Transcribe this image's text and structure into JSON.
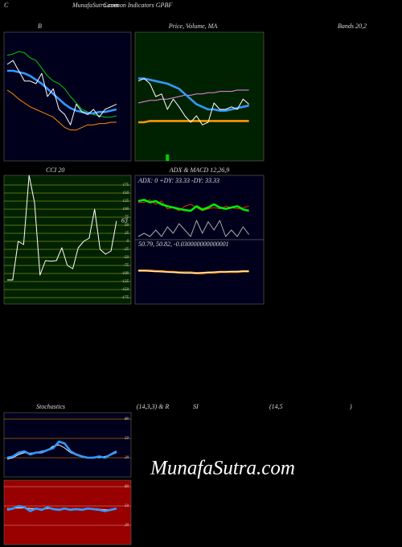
{
  "header": {
    "letter": "C",
    "site": "MunafaSutra.com",
    "title": "Common Indicators GPBF"
  },
  "watermark": "MunafaSutra.com",
  "chart_data": [
    {
      "type": "line",
      "title": "B",
      "subtitle": "Bands 20,2",
      "background": "#00001c",
      "ylim": [
        0,
        100
      ],
      "series": [
        {
          "color": "#00cc00",
          "values": [
            82,
            83,
            85,
            84,
            80,
            78,
            72,
            66,
            62,
            60,
            56,
            50,
            45,
            40,
            38,
            36,
            35,
            34,
            34,
            35
          ]
        },
        {
          "color": "#ff8800",
          "values": [
            55,
            52,
            48,
            45,
            42,
            40,
            38,
            36,
            34,
            30,
            26,
            24,
            24,
            26,
            28,
            28,
            29,
            29,
            30,
            30
          ]
        },
        {
          "color": "#3399ff",
          "values": [
            70,
            70,
            69,
            68,
            66,
            63,
            60,
            56,
            52,
            48,
            44,
            41,
            39,
            38,
            37,
            37,
            38,
            38,
            39,
            40
          ]
        },
        {
          "color": "#ffffff",
          "values": [
            75,
            78,
            70,
            62,
            62,
            60,
            68,
            50,
            56,
            40,
            36,
            28,
            44,
            38,
            36,
            40,
            34,
            40,
            42,
            44
          ]
        }
      ]
    },
    {
      "type": "line",
      "title": "Price,  Volume, MA",
      "background": "#002200",
      "ylim": [
        0,
        100
      ],
      "series": [
        {
          "color": "#ff9900",
          "values": [
            30,
            30,
            31,
            31,
            31,
            31,
            31,
            31,
            31,
            31,
            31,
            31,
            31,
            31,
            31,
            31,
            31,
            31,
            31,
            31
          ]
        },
        {
          "color": "#ee88ee",
          "values": [
            45,
            46,
            47,
            47,
            48,
            48,
            49,
            50,
            51,
            51,
            52,
            52,
            53,
            53,
            54,
            54,
            54,
            55,
            55,
            55
          ]
        },
        {
          "color": "#3399ff",
          "values": [
            64,
            64,
            63,
            62,
            61,
            60,
            58,
            56,
            52,
            48,
            44,
            42,
            40,
            40,
            39,
            39,
            40,
            41,
            42,
            43
          ]
        },
        {
          "color": "#ffffff",
          "values": [
            62,
            64,
            60,
            50,
            52,
            40,
            48,
            42,
            35,
            30,
            35,
            28,
            30,
            45,
            40,
            40,
            42,
            40,
            48,
            44
          ]
        }
      ],
      "volume": {
        "color": "#00cc00",
        "values": [
          0,
          0,
          0,
          0,
          0,
          5,
          0,
          0,
          0,
          0,
          0,
          0,
          0,
          0,
          0,
          0,
          0,
          0,
          0,
          0
        ]
      }
    },
    {
      "type": "line",
      "title": "CCI 20",
      "background": "#002200",
      "ylim": [
        -195,
        205
      ],
      "grid": true,
      "grid_color": "#7a8a1a",
      "yticks": [
        175,
        150,
        125,
        100,
        75,
        50,
        25,
        0,
        -25,
        -50,
        -75,
        -100,
        -125,
        -150,
        -175
      ],
      "last_value_label": true,
      "series": [
        {
          "color": "#ffffff",
          "values": [
            -120,
            -120,
            0,
            -10,
            205,
            120,
            -105,
            -60,
            -62,
            -60,
            -20,
            -75,
            -85,
            -20,
            0,
            10,
            100,
            -25,
            -40,
            -30,
            63
          ]
        }
      ]
    },
    {
      "type": "line",
      "title": "ADX  & MACD 12,26,9",
      "annotation": "ADX: 0  +DY: 33.33 -DY: 33.33",
      "background": "#00001c",
      "ylim": [
        0,
        100
      ],
      "series": [
        {
          "color": "#aaaaaa",
          "values": [
            5,
            10,
            5,
            15,
            5,
            20,
            10,
            25,
            15,
            5,
            30,
            10,
            28,
            15,
            30,
            5,
            15,
            5,
            20,
            8
          ]
        },
        {
          "color": "#dd3300",
          "values": [
            58,
            58,
            62,
            55,
            60,
            48,
            50,
            45,
            52,
            55,
            50,
            45,
            48,
            50,
            48,
            52,
            50,
            48,
            50,
            52
          ]
        },
        {
          "color": "#00ee00",
          "values": [
            60,
            62,
            58,
            60,
            55,
            52,
            50,
            48,
            46,
            45,
            52,
            47,
            50,
            55,
            50,
            48,
            50,
            52,
            47,
            45
          ]
        }
      ]
    },
    {
      "type": "line",
      "annotation": "50.79,  50.82,  -0.030000000000001",
      "background": "#00001c",
      "ylim": [
        0,
        100
      ],
      "series": [
        {
          "color": "#ff9900",
          "values": [
            52,
            52,
            52,
            51,
            51,
            50,
            50,
            49,
            49,
            49,
            48,
            48,
            49,
            49,
            50,
            50,
            50,
            50,
            51,
            51
          ]
        },
        {
          "color": "#ffffff",
          "values": [
            52,
            52,
            51,
            51,
            50,
            50,
            49,
            49,
            48,
            48,
            48,
            49,
            49,
            50,
            50,
            50,
            51,
            51,
            51,
            51
          ]
        }
      ]
    },
    {
      "type": "line",
      "title": "Stochastics",
      "subtitle": "(14,3,3) & R",
      "background": "#00001c",
      "ylim": [
        -10,
        90
      ],
      "grid": true,
      "grid_color": "#aa6600",
      "yticks": [
        80,
        50,
        20
      ],
      "series": [
        {
          "color": "#ffffff",
          "values": [
            18,
            20,
            25,
            28,
            27,
            28,
            30,
            32,
            38,
            40,
            35,
            28,
            24,
            21,
            20,
            21,
            20,
            22,
            24,
            28
          ]
        },
        {
          "color": "#3399ff",
          "values": [
            20,
            22,
            28,
            30,
            25,
            28,
            28,
            32,
            35,
            45,
            42,
            30,
            25,
            22,
            20,
            20,
            22,
            20,
            25,
            30
          ]
        }
      ]
    },
    {
      "type": "line",
      "title": "SI",
      "subtitle": "(14,5",
      "note": ")",
      "background": "#990000",
      "ylim": [
        -10,
        90
      ],
      "grid": true,
      "grid_color": "#cc6666",
      "yticks": [
        80,
        50,
        20
      ],
      "series": [
        {
          "color": "#ffffff",
          "values": [
            46,
            46,
            47,
            47,
            46,
            46,
            45,
            46,
            46,
            45,
            45,
            45,
            46,
            45,
            45,
            46,
            45,
            44,
            44,
            45
          ]
        },
        {
          "color": "#3399ff",
          "values": [
            44,
            46,
            50,
            48,
            42,
            46,
            44,
            48,
            45,
            44,
            46,
            44,
            45,
            44,
            46,
            45,
            44,
            42,
            44,
            46
          ]
        }
      ]
    }
  ]
}
